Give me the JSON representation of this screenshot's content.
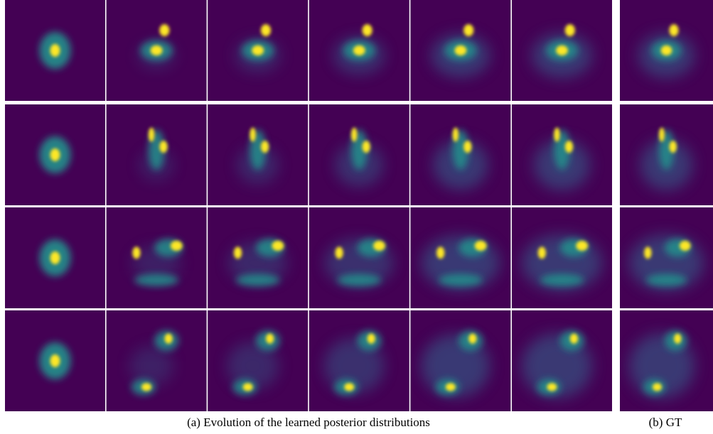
{
  "captions": {
    "a": "(a) Evolution of the learned posterior distributions",
    "b": "(b) GT"
  }
}
